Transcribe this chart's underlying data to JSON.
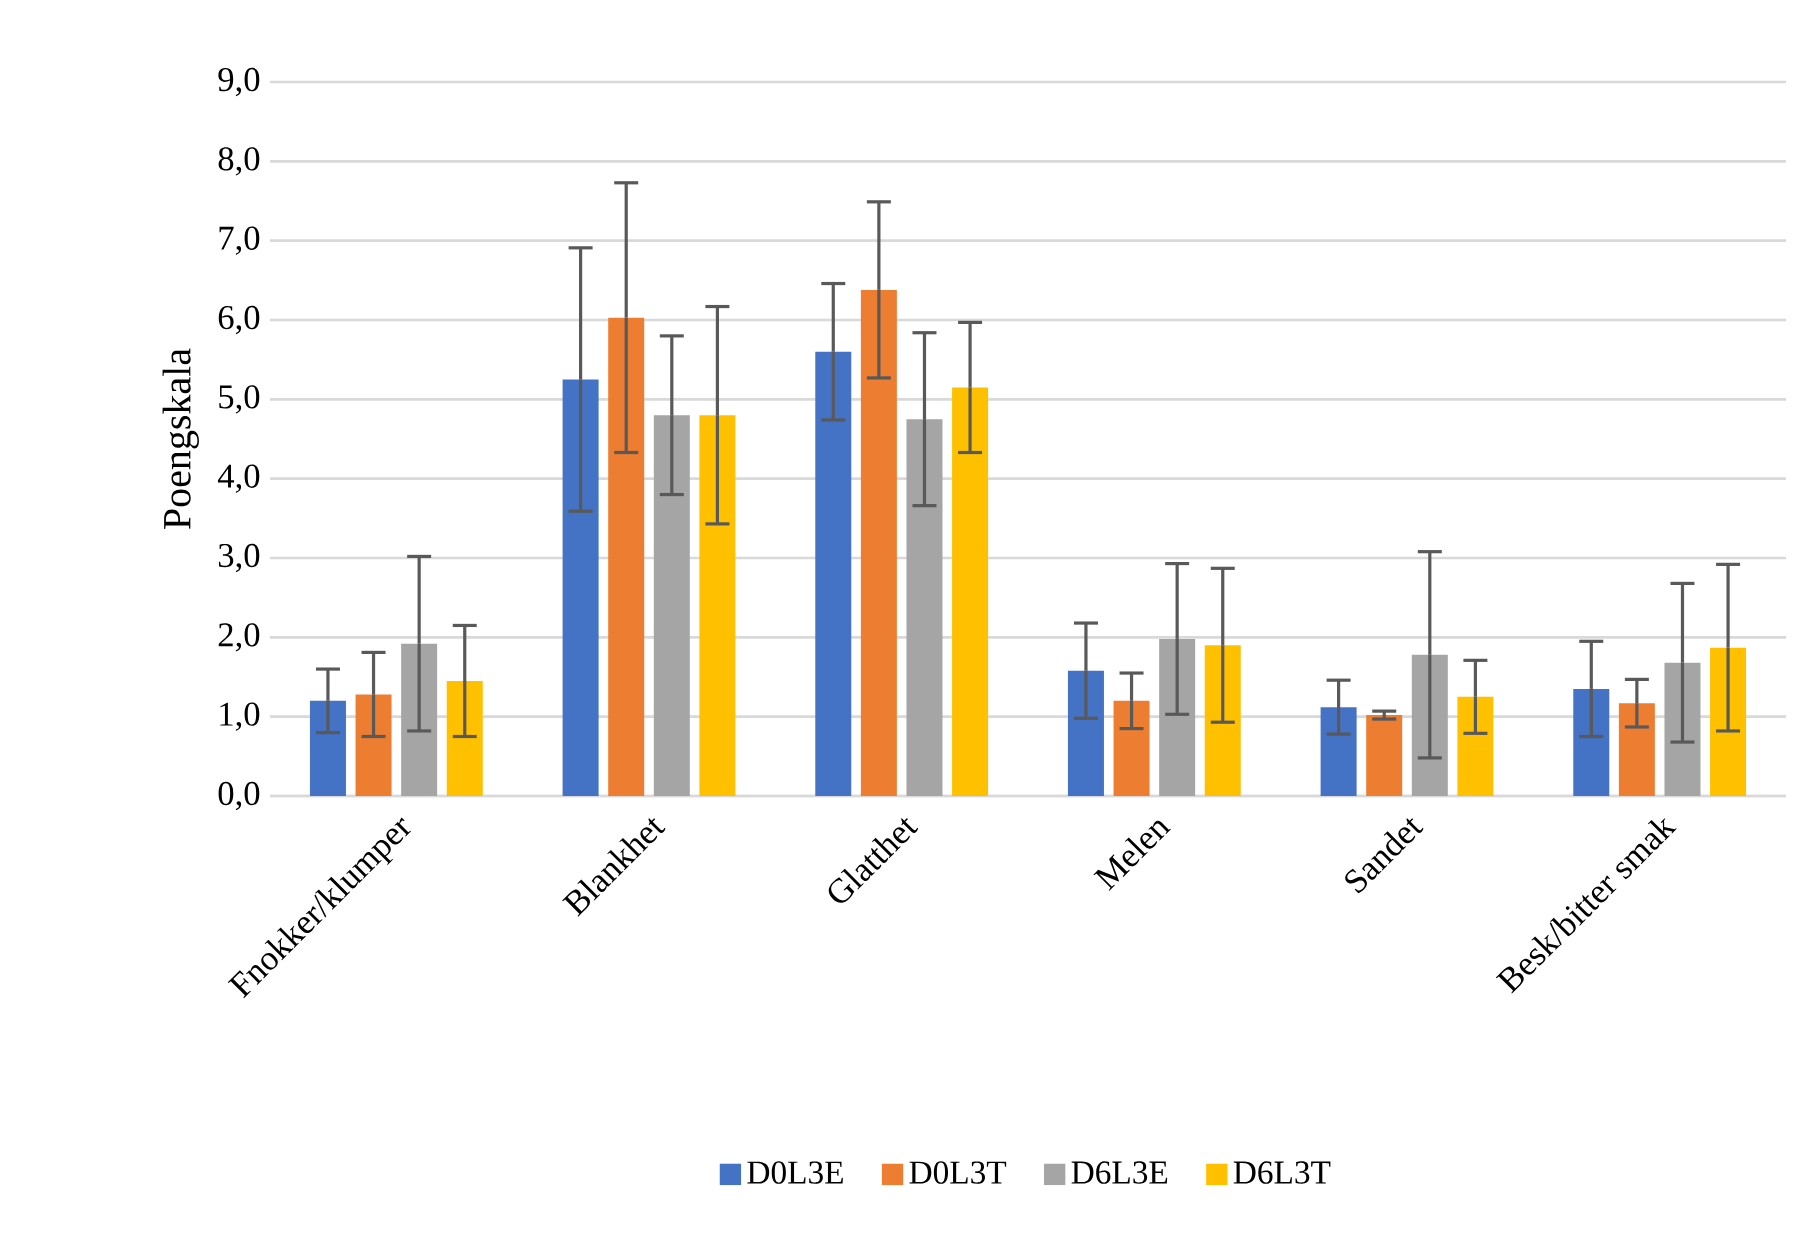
{
  "chart_data": {
    "type": "bar",
    "ylabel": "Poengskala",
    "categories": [
      "Fnokker/klumper",
      "Blankhet",
      "Glatthet",
      "Melen",
      "Sandet",
      "Besk/bitter smak"
    ],
    "series": [
      {
        "name": "D0L3E",
        "color": "#4472c4",
        "values": [
          1.2,
          5.25,
          5.6,
          1.58,
          1.12,
          1.35
        ],
        "errors": [
          0.4,
          1.66,
          0.86,
          0.6,
          0.34,
          0.6
        ]
      },
      {
        "name": "D0L3T",
        "color": "#ed7d31",
        "values": [
          1.28,
          6.03,
          6.38,
          1.2,
          1.02,
          1.17
        ],
        "errors": [
          0.53,
          1.7,
          1.11,
          0.35,
          0.05,
          0.3
        ]
      },
      {
        "name": "D6L3E",
        "color": "#a5a5a5",
        "values": [
          1.92,
          4.8,
          4.75,
          1.98,
          1.78,
          1.68
        ],
        "errors": [
          1.1,
          1.0,
          1.09,
          0.95,
          1.3,
          1.0
        ]
      },
      {
        "name": "D6L3T",
        "color": "#ffc000",
        "values": [
          1.45,
          4.8,
          5.15,
          1.9,
          1.25,
          1.87
        ],
        "errors": [
          0.7,
          1.37,
          0.82,
          0.97,
          0.46,
          1.05
        ]
      }
    ],
    "ylim": [
      0,
      9
    ],
    "yticks": [
      {
        "value": 0,
        "label": "0,0"
      },
      {
        "value": 1,
        "label": "1,0"
      },
      {
        "value": 2,
        "label": "2,0"
      },
      {
        "value": 3,
        "label": "3,0"
      },
      {
        "value": 4,
        "label": "4,0"
      },
      {
        "value": 5,
        "label": "5,0"
      },
      {
        "value": 6,
        "label": "6,0"
      },
      {
        "value": 7,
        "label": "7,0"
      },
      {
        "value": 8,
        "label": "8,0"
      },
      {
        "value": 9,
        "label": "9,0"
      }
    ],
    "grid": "y",
    "legend": "bottom"
  }
}
